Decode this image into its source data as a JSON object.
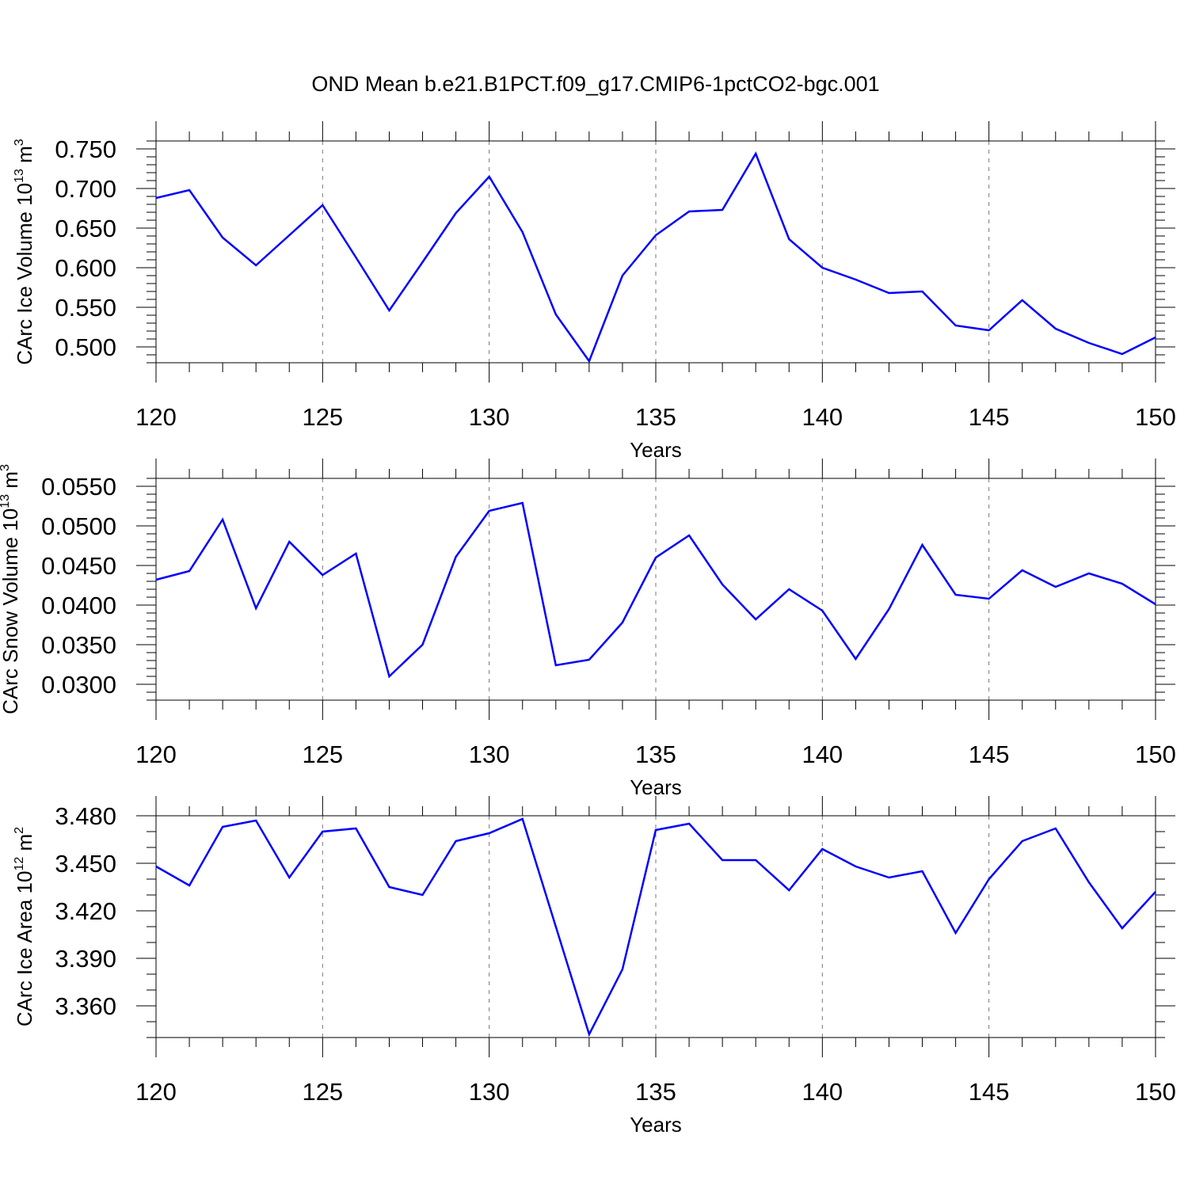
{
  "title": "OND Mean b.e21.B1PCT.f09_g17.CMIP6-1pctCO2-bgc.001",
  "chart_data": [
    {
      "type": "line",
      "xlabel": "Years",
      "ylabel": {
        "text": "CArc Ice Volume 10",
        "sup": "13",
        "unit": " m",
        "unit_sup": "3"
      },
      "xlim": [
        120,
        150
      ],
      "ylim": [
        0.48,
        0.76
      ],
      "xticks": [
        120,
        125,
        130,
        135,
        140,
        145,
        150
      ],
      "xtick_labels": [
        "120",
        "125",
        "130",
        "135",
        "140",
        "145",
        "150"
      ],
      "yticks": [
        0.5,
        0.55,
        0.6,
        0.65,
        0.7,
        0.75
      ],
      "ytick_labels": [
        "0.500",
        "0.550",
        "0.600",
        "0.650",
        "0.700",
        "0.750"
      ],
      "y_minor_step": 0.01,
      "grid": "vertical dashed at major x ticks",
      "line_color": "#0000ff",
      "x": [
        120,
        121,
        122,
        123,
        124,
        125,
        126,
        127,
        128,
        129,
        130,
        131,
        132,
        133,
        134,
        135,
        136,
        137,
        138,
        139,
        140,
        141,
        142,
        143,
        144,
        145,
        146,
        147,
        148,
        149,
        150
      ],
      "values": [
        0.688,
        0.698,
        0.638,
        0.603,
        0.641,
        0.679,
        0.613,
        0.546,
        0.607,
        0.669,
        0.715,
        0.645,
        0.541,
        0.482,
        0.59,
        0.641,
        0.671,
        0.673,
        0.744,
        0.636,
        0.6,
        0.585,
        0.568,
        0.57,
        0.527,
        0.521,
        0.559,
        0.523,
        0.505,
        0.491,
        0.512
      ]
    },
    {
      "type": "line",
      "xlabel": "Years",
      "ylabel": {
        "text": "CArc Snow Volume 10",
        "sup": "13",
        "unit": " m",
        "unit_sup": "3"
      },
      "xlim": [
        120,
        150
      ],
      "ylim": [
        0.028,
        0.056
      ],
      "xticks": [
        120,
        125,
        130,
        135,
        140,
        145,
        150
      ],
      "xtick_labels": [
        "120",
        "125",
        "130",
        "135",
        "140",
        "145",
        "150"
      ],
      "yticks": [
        0.03,
        0.035,
        0.04,
        0.045,
        0.05,
        0.055
      ],
      "ytick_labels": [
        "0.0300",
        "0.0350",
        "0.0400",
        "0.0450",
        "0.0500",
        "0.0550"
      ],
      "y_minor_step": 0.001,
      "grid": "vertical dashed at major x ticks",
      "line_color": "#0000ff",
      "x": [
        120,
        121,
        122,
        123,
        124,
        125,
        126,
        127,
        128,
        129,
        130,
        131,
        132,
        133,
        134,
        135,
        136,
        137,
        138,
        139,
        140,
        141,
        142,
        143,
        144,
        145,
        146,
        147,
        148,
        149,
        150
      ],
      "values": [
        0.0432,
        0.0443,
        0.0508,
        0.0396,
        0.048,
        0.0438,
        0.0465,
        0.031,
        0.035,
        0.0461,
        0.0519,
        0.0529,
        0.0324,
        0.0331,
        0.0378,
        0.046,
        0.0488,
        0.0426,
        0.0382,
        0.042,
        0.0393,
        0.0332,
        0.0395,
        0.0476,
        0.0413,
        0.0408,
        0.0444,
        0.0423,
        0.044,
        0.0427,
        0.0401
      ]
    },
    {
      "type": "line",
      "xlabel": "Years",
      "ylabel": {
        "text": "CArc Ice Area 10",
        "sup": "12",
        "unit": " m",
        "unit_sup": "2"
      },
      "xlim": [
        120,
        150
      ],
      "ylim": [
        3.34,
        3.48
      ],
      "xticks": [
        120,
        125,
        130,
        135,
        140,
        145,
        150
      ],
      "xtick_labels": [
        "120",
        "125",
        "130",
        "135",
        "140",
        "145",
        "150"
      ],
      "yticks": [
        3.36,
        3.39,
        3.42,
        3.45,
        3.48
      ],
      "ytick_labels": [
        "3.360",
        "3.390",
        "3.420",
        "3.450",
        "3.480"
      ],
      "y_minor_step": 0.01,
      "grid": "vertical dashed at major x ticks",
      "line_color": "#0000ff",
      "x": [
        120,
        121,
        122,
        123,
        124,
        125,
        126,
        127,
        128,
        129,
        130,
        131,
        132,
        133,
        134,
        135,
        136,
        137,
        138,
        139,
        140,
        141,
        142,
        143,
        144,
        145,
        146,
        147,
        148,
        149,
        150
      ],
      "values": [
        3.448,
        3.436,
        3.473,
        3.477,
        3.441,
        3.47,
        3.472,
        3.435,
        3.43,
        3.464,
        3.469,
        3.478,
        3.41,
        3.342,
        3.383,
        3.471,
        3.475,
        3.452,
        3.452,
        3.433,
        3.459,
        3.448,
        3.441,
        3.445,
        3.406,
        3.44,
        3.464,
        3.472,
        3.438,
        3.409,
        3.432
      ]
    }
  ]
}
